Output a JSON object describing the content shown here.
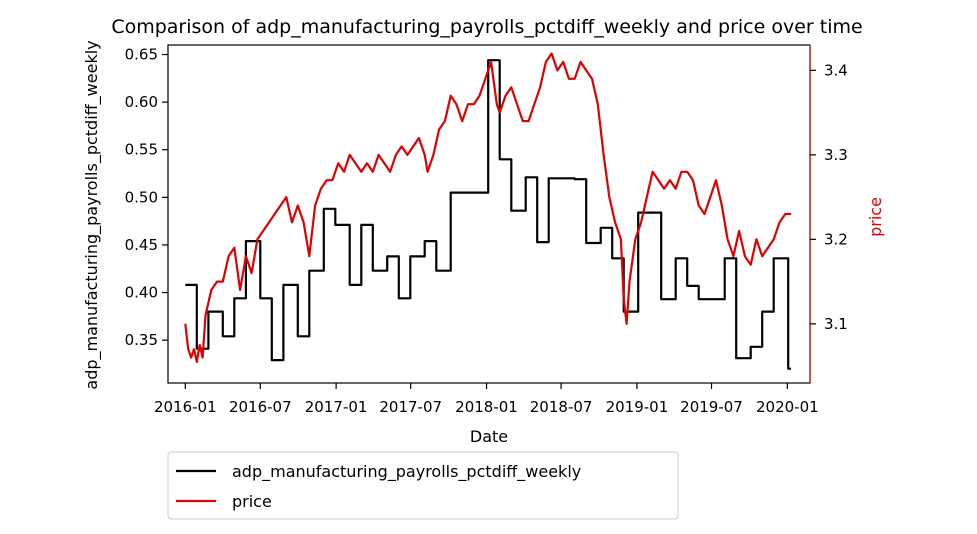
{
  "chart_data": {
    "type": "line",
    "title": "Comparison of adp_manufacturing_payrolls_pctdiff_weekly and price over time",
    "xlabel": "Date",
    "ylabel_left": "adp_manufacturing_payrolls_pctdiff_weekly",
    "ylabel_right": "price",
    "xlim": [
      "2015-11-20",
      "2020-02-25"
    ],
    "ylim_left": [
      0.305,
      0.66
    ],
    "ylim_right": [
      3.03,
      3.43
    ],
    "x_ticks": [
      "2016-01",
      "2016-07",
      "2017-01",
      "2017-07",
      "2018-01",
      "2018-07",
      "2019-01",
      "2019-07",
      "2020-01"
    ],
    "y_ticks_left": [
      "0.35",
      "0.40",
      "0.45",
      "0.50",
      "0.55",
      "0.60",
      "0.65"
    ],
    "y_ticks_right": [
      "3.1",
      "3.2",
      "3.3",
      "3.4"
    ],
    "legend_position": "below",
    "grid": false,
    "series": [
      {
        "name": "adp_manufacturing_payrolls_pctdiff_weekly",
        "axis": "left",
        "color": "#000000",
        "step": true,
        "points": [
          [
            "2016-01-01",
            0.408
          ],
          [
            "2016-01-29",
            0.341
          ],
          [
            "2016-02-26",
            0.38
          ],
          [
            "2016-04-01",
            0.354
          ],
          [
            "2016-04-29",
            0.394
          ],
          [
            "2016-05-27",
            0.454
          ],
          [
            "2016-07-01",
            0.394
          ],
          [
            "2016-07-29",
            0.329
          ],
          [
            "2016-08-26",
            0.408
          ],
          [
            "2016-09-30",
            0.354
          ],
          [
            "2016-10-28",
            0.423
          ],
          [
            "2016-12-02",
            0.488
          ],
          [
            "2016-12-30",
            0.471
          ],
          [
            "2017-02-03",
            0.408
          ],
          [
            "2017-03-03",
            0.471
          ],
          [
            "2017-03-31",
            0.423
          ],
          [
            "2017-05-05",
            0.438
          ],
          [
            "2017-06-02",
            0.394
          ],
          [
            "2017-06-30",
            0.438
          ],
          [
            "2017-08-04",
            0.454
          ],
          [
            "2017-09-01",
            0.423
          ],
          [
            "2017-10-06",
            0.505
          ],
          [
            "2017-11-03",
            0.505
          ],
          [
            "2018-01-05",
            0.644
          ],
          [
            "2018-02-02",
            0.54
          ],
          [
            "2018-03-02",
            0.486
          ],
          [
            "2018-04-06",
            0.521
          ],
          [
            "2018-05-04",
            0.453
          ],
          [
            "2018-06-01",
            0.52
          ],
          [
            "2018-07-06",
            0.52
          ],
          [
            "2018-08-03",
            0.519
          ],
          [
            "2018-08-31",
            0.452
          ],
          [
            "2018-10-05",
            0.468
          ],
          [
            "2018-11-02",
            0.436
          ],
          [
            "2018-11-30",
            0.38
          ],
          [
            "2019-01-04",
            0.484
          ],
          [
            "2019-02-01",
            0.484
          ],
          [
            "2019-03-01",
            0.393
          ],
          [
            "2019-04-05",
            0.436
          ],
          [
            "2019-05-03",
            0.407
          ],
          [
            "2019-05-31",
            0.393
          ],
          [
            "2019-07-05",
            0.393
          ],
          [
            "2019-08-02",
            0.436
          ],
          [
            "2019-08-30",
            0.331
          ],
          [
            "2019-10-04",
            0.343
          ],
          [
            "2019-11-01",
            0.38
          ],
          [
            "2019-11-29",
            0.436
          ],
          [
            "2020-01-03",
            0.32
          ],
          [
            "2020-01-10",
            0.32
          ]
        ]
      },
      {
        "name": "price",
        "axis": "right",
        "color": "#e00000",
        "step": false,
        "points": [
          [
            "2016-01-01",
            3.1
          ],
          [
            "2016-01-08",
            3.07
          ],
          [
            "2016-01-15",
            3.06
          ],
          [
            "2016-01-22",
            3.07
          ],
          [
            "2016-01-29",
            3.055
          ],
          [
            "2016-02-05",
            3.075
          ],
          [
            "2016-02-12",
            3.06
          ],
          [
            "2016-02-19",
            3.11
          ],
          [
            "2016-03-04",
            3.14
          ],
          [
            "2016-03-18",
            3.15
          ],
          [
            "2016-04-01",
            3.15
          ],
          [
            "2016-04-15",
            3.18
          ],
          [
            "2016-04-29",
            3.19
          ],
          [
            "2016-05-13",
            3.14
          ],
          [
            "2016-05-27",
            3.18
          ],
          [
            "2016-06-10",
            3.16
          ],
          [
            "2016-06-24",
            3.2
          ],
          [
            "2016-07-08",
            3.21
          ],
          [
            "2016-07-22",
            3.22
          ],
          [
            "2016-08-05",
            3.23
          ],
          [
            "2016-08-19",
            3.24
          ],
          [
            "2016-09-02",
            3.25
          ],
          [
            "2016-09-16",
            3.22
          ],
          [
            "2016-09-30",
            3.24
          ],
          [
            "2016-10-14",
            3.22
          ],
          [
            "2016-10-28",
            3.18
          ],
          [
            "2016-11-11",
            3.24
          ],
          [
            "2016-11-25",
            3.26
          ],
          [
            "2016-12-09",
            3.27
          ],
          [
            "2016-12-23",
            3.27
          ],
          [
            "2017-01-06",
            3.29
          ],
          [
            "2017-01-20",
            3.28
          ],
          [
            "2017-02-03",
            3.3
          ],
          [
            "2017-02-17",
            3.29
          ],
          [
            "2017-03-03",
            3.28
          ],
          [
            "2017-03-17",
            3.29
          ],
          [
            "2017-03-31",
            3.28
          ],
          [
            "2017-04-14",
            3.3
          ],
          [
            "2017-04-28",
            3.29
          ],
          [
            "2017-05-12",
            3.28
          ],
          [
            "2017-05-26",
            3.3
          ],
          [
            "2017-06-09",
            3.31
          ],
          [
            "2017-06-23",
            3.3
          ],
          [
            "2017-07-07",
            3.31
          ],
          [
            "2017-07-21",
            3.32
          ],
          [
            "2017-08-04",
            3.3
          ],
          [
            "2017-08-11",
            3.28
          ],
          [
            "2017-08-25",
            3.3
          ],
          [
            "2017-09-08",
            3.33
          ],
          [
            "2017-09-22",
            3.34
          ],
          [
            "2017-10-06",
            3.37
          ],
          [
            "2017-10-20",
            3.36
          ],
          [
            "2017-11-03",
            3.34
          ],
          [
            "2017-11-17",
            3.36
          ],
          [
            "2017-12-01",
            3.36
          ],
          [
            "2017-12-15",
            3.37
          ],
          [
            "2017-12-29",
            3.39
          ],
          [
            "2018-01-12",
            3.41
          ],
          [
            "2018-01-26",
            3.36
          ],
          [
            "2018-02-02",
            3.35
          ],
          [
            "2018-02-16",
            3.37
          ],
          [
            "2018-03-02",
            3.38
          ],
          [
            "2018-03-16",
            3.36
          ],
          [
            "2018-03-30",
            3.34
          ],
          [
            "2018-04-13",
            3.34
          ],
          [
            "2018-04-27",
            3.36
          ],
          [
            "2018-05-11",
            3.38
          ],
          [
            "2018-05-25",
            3.41
          ],
          [
            "2018-06-08",
            3.42
          ],
          [
            "2018-06-22",
            3.4
          ],
          [
            "2018-07-06",
            3.41
          ],
          [
            "2018-07-20",
            3.39
          ],
          [
            "2018-08-03",
            3.39
          ],
          [
            "2018-08-17",
            3.41
          ],
          [
            "2018-08-31",
            3.4
          ],
          [
            "2018-09-14",
            3.39
          ],
          [
            "2018-09-28",
            3.36
          ],
          [
            "2018-10-12",
            3.3
          ],
          [
            "2018-10-26",
            3.25
          ],
          [
            "2018-11-09",
            3.22
          ],
          [
            "2018-11-23",
            3.2
          ],
          [
            "2018-11-30",
            3.13
          ],
          [
            "2018-12-07",
            3.1
          ],
          [
            "2018-12-14",
            3.15
          ],
          [
            "2018-12-28",
            3.2
          ],
          [
            "2019-01-11",
            3.22
          ],
          [
            "2019-01-25",
            3.25
          ],
          [
            "2019-02-08",
            3.28
          ],
          [
            "2019-02-22",
            3.27
          ],
          [
            "2019-03-08",
            3.26
          ],
          [
            "2019-03-22",
            3.27
          ],
          [
            "2019-04-05",
            3.26
          ],
          [
            "2019-04-19",
            3.28
          ],
          [
            "2019-05-03",
            3.28
          ],
          [
            "2019-05-17",
            3.27
          ],
          [
            "2019-05-31",
            3.24
          ],
          [
            "2019-06-14",
            3.23
          ],
          [
            "2019-06-28",
            3.25
          ],
          [
            "2019-07-12",
            3.27
          ],
          [
            "2019-07-26",
            3.24
          ],
          [
            "2019-08-09",
            3.2
          ],
          [
            "2019-08-23",
            3.18
          ],
          [
            "2019-09-06",
            3.21
          ],
          [
            "2019-09-20",
            3.18
          ],
          [
            "2019-10-04",
            3.17
          ],
          [
            "2019-10-18",
            3.2
          ],
          [
            "2019-11-01",
            3.18
          ],
          [
            "2019-11-15",
            3.19
          ],
          [
            "2019-11-29",
            3.2
          ],
          [
            "2019-12-13",
            3.22
          ],
          [
            "2019-12-27",
            3.23
          ],
          [
            "2020-01-10",
            3.23
          ]
        ]
      }
    ]
  }
}
